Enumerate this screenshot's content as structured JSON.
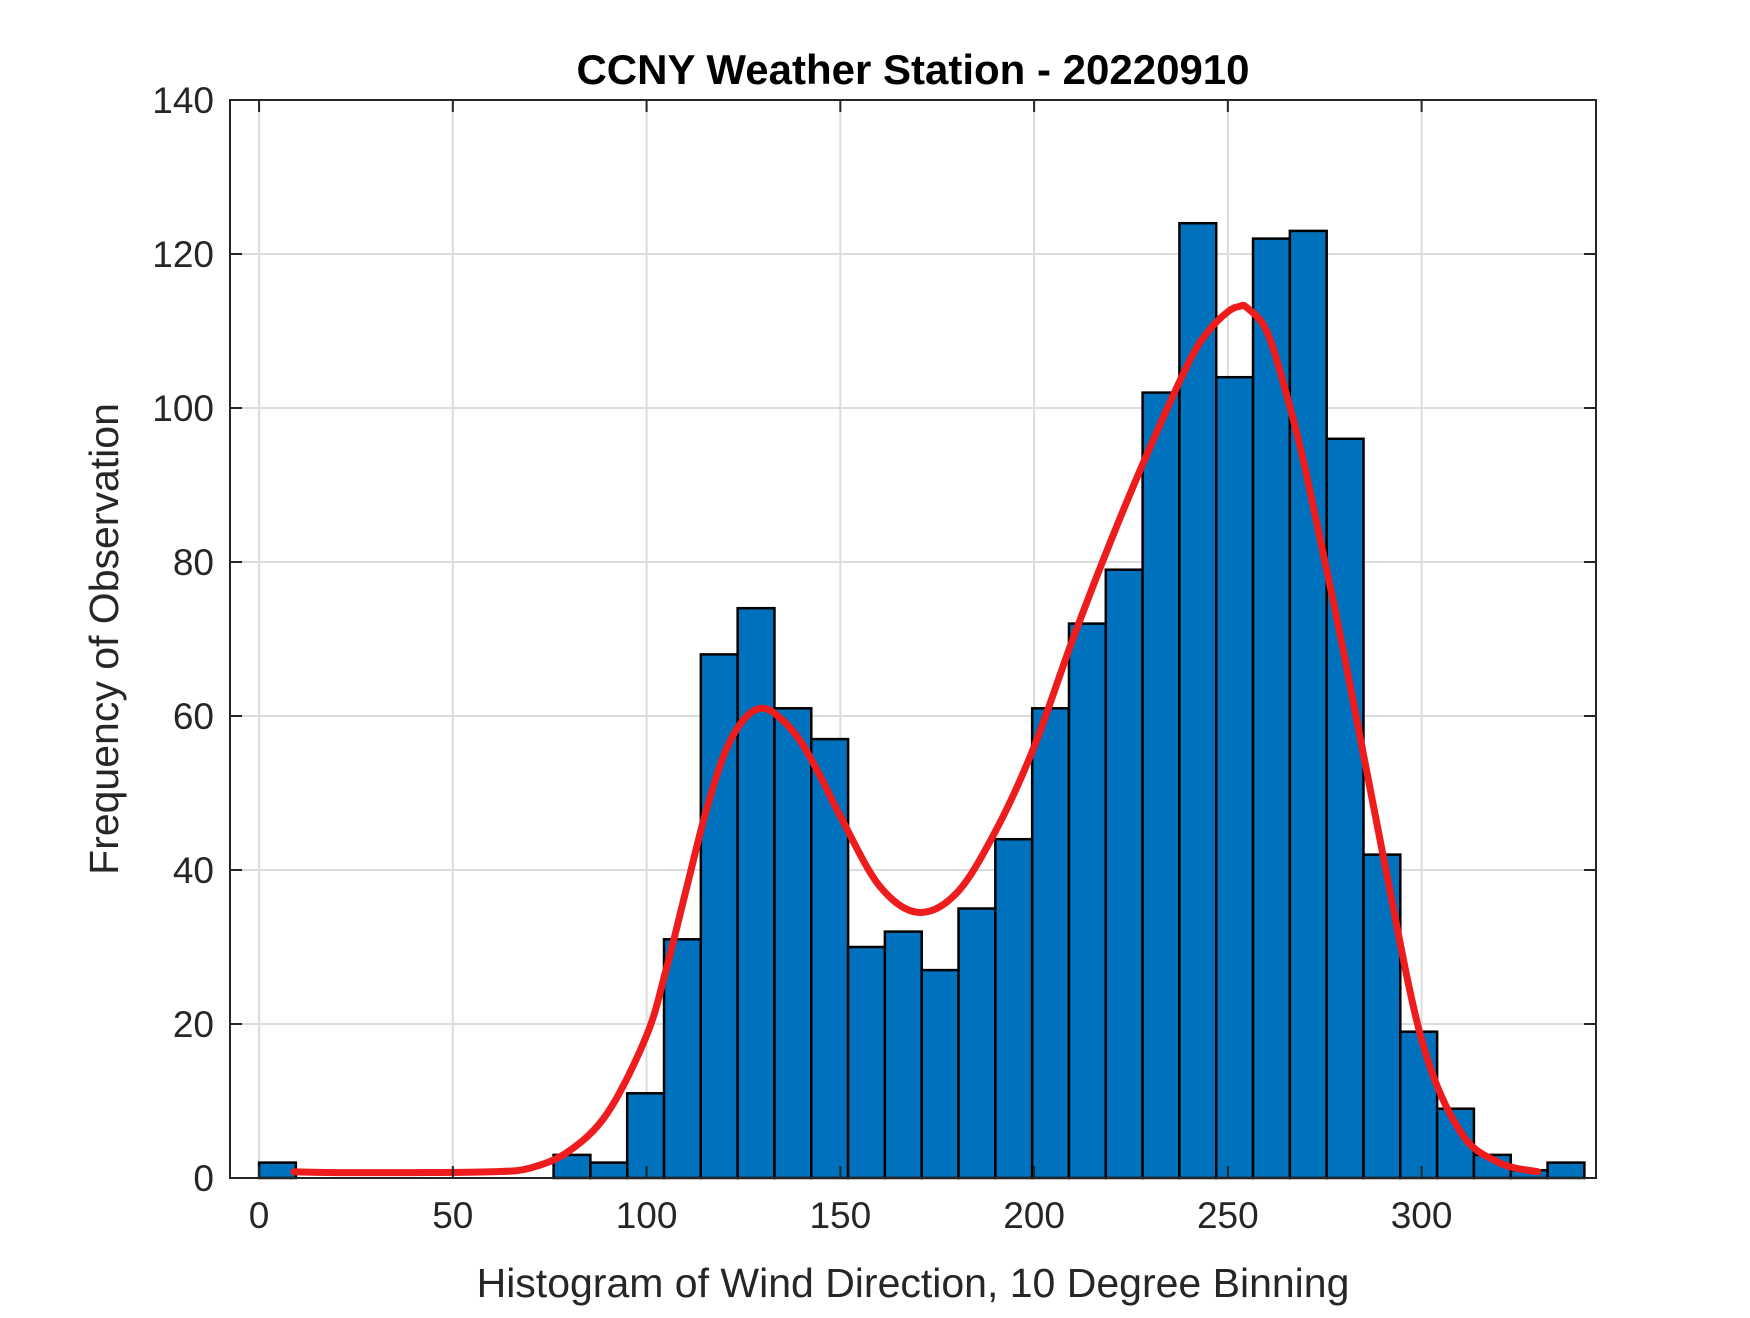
{
  "chart_data": {
    "type": "bar",
    "title": "CCNY Weather Station - 20220910",
    "xlabel": "Histogram of Wind Direction, 10 Degree Binning",
    "ylabel": "Frequency of Observation",
    "xlim": [
      -7.5,
      345
    ],
    "ylim": [
      0,
      140
    ],
    "xticks": [
      0,
      50,
      100,
      150,
      200,
      250,
      300
    ],
    "yticks": [
      0,
      20,
      40,
      60,
      80,
      100,
      120,
      140
    ],
    "grid": true,
    "bin_width": 9.5,
    "bins": [
      {
        "x0": 0,
        "value": 2
      },
      {
        "x0": 76,
        "value": 3
      },
      {
        "x0": 85.5,
        "value": 2
      },
      {
        "x0": 95,
        "value": 11
      },
      {
        "x0": 104.5,
        "value": 31
      },
      {
        "x0": 114,
        "value": 68
      },
      {
        "x0": 123.5,
        "value": 74
      },
      {
        "x0": 133,
        "value": 61
      },
      {
        "x0": 142.5,
        "value": 57
      },
      {
        "x0": 152,
        "value": 30
      },
      {
        "x0": 161.5,
        "value": 32
      },
      {
        "x0": 171,
        "value": 27
      },
      {
        "x0": 180.5,
        "value": 35
      },
      {
        "x0": 190,
        "value": 44
      },
      {
        "x0": 199.5,
        "value": 61
      },
      {
        "x0": 209,
        "value": 72
      },
      {
        "x0": 218.5,
        "value": 79
      },
      {
        "x0": 228,
        "value": 102
      },
      {
        "x0": 237.5,
        "value": 124
      },
      {
        "x0": 247,
        "value": 104
      },
      {
        "x0": 256.5,
        "value": 122
      },
      {
        "x0": 266,
        "value": 123
      },
      {
        "x0": 275.5,
        "value": 96
      },
      {
        "x0": 285,
        "value": 42
      },
      {
        "x0": 294.5,
        "value": 19
      },
      {
        "x0": 304,
        "value": 9
      },
      {
        "x0": 313.5,
        "value": 3
      },
      {
        "x0": 323,
        "value": 1
      },
      {
        "x0": 332.5,
        "value": 2
      }
    ],
    "fit_curve": {
      "x": [
        9,
        20,
        40,
        60,
        70,
        80,
        90,
        100,
        105,
        110,
        115,
        120,
        125,
        130,
        135,
        140,
        145,
        150,
        160,
        170,
        180,
        190,
        200,
        210,
        220,
        230,
        240,
        245,
        250,
        253,
        255,
        260,
        265,
        270,
        280,
        290,
        300,
        310,
        320,
        330
      ],
      "y": [
        0.8,
        0.7,
        0.7,
        0.8,
        1.3,
        3.5,
        8.5,
        18.5,
        27,
        37,
        47,
        55,
        59.5,
        61,
        59.5,
        56.5,
        52,
        47,
        38,
        34.5,
        37,
        45,
        56,
        70,
        83,
        95,
        106,
        110,
        112.5,
        113.2,
        113,
        110,
        102,
        92,
        68,
        42,
        18,
        6,
        2,
        0.8
      ]
    },
    "colors": {
      "bar_fill": "#0072BD",
      "bar_edge": "#000000",
      "fit_line": "#EE1C1C",
      "grid": "#dcdcdc",
      "axes": "#262626"
    }
  }
}
